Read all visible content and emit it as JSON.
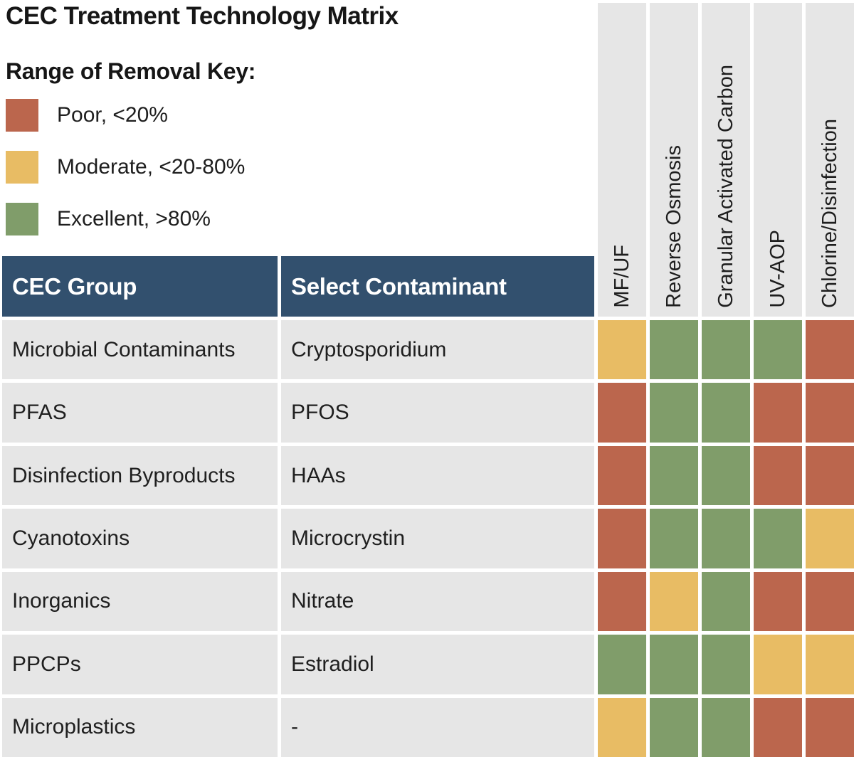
{
  "title": "CEC Treatment Technology Matrix",
  "legend": {
    "heading": "Range of Removal Key:",
    "items": [
      {
        "rating": "poor",
        "label": "Poor, <20%"
      },
      {
        "rating": "moderate",
        "label": "Moderate, <20-80%"
      },
      {
        "rating": "excellent",
        "label": "Excellent, >80%"
      }
    ]
  },
  "table": {
    "headers": [
      "CEC Group",
      "Select Contaminant"
    ],
    "technologies": [
      "MF/UF",
      "Reverse Osmosis",
      "Granular Activated Carbon",
      "UV-AOP",
      "Chlorine/Disinfection"
    ],
    "rows": [
      {
        "group": "Microbial Contaminants",
        "contaminant": "Cryptosporidium",
        "ratings": [
          "moderate",
          "excellent",
          "excellent",
          "excellent",
          "poor"
        ]
      },
      {
        "group": "PFAS",
        "contaminant": "PFOS",
        "ratings": [
          "poor",
          "excellent",
          "excellent",
          "poor",
          "poor"
        ]
      },
      {
        "group": "Disinfection Byproducts",
        "contaminant": "HAAs",
        "ratings": [
          "poor",
          "excellent",
          "excellent",
          "poor",
          "poor"
        ]
      },
      {
        "group": "Cyanotoxins",
        "contaminant": "Microcrystin",
        "ratings": [
          "poor",
          "excellent",
          "excellent",
          "excellent",
          "moderate"
        ]
      },
      {
        "group": "Inorganics",
        "contaminant": "Nitrate",
        "ratings": [
          "poor",
          "moderate",
          "excellent",
          "poor",
          "poor"
        ]
      },
      {
        "group": "PPCPs",
        "contaminant": "Estradiol",
        "ratings": [
          "excellent",
          "excellent",
          "excellent",
          "moderate",
          "moderate"
        ]
      },
      {
        "group": "Microplastics",
        "contaminant": "-",
        "ratings": [
          "moderate",
          "excellent",
          "excellent",
          "poor",
          "poor"
        ]
      }
    ]
  },
  "colors": {
    "poor": "#bb664d",
    "moderate": "#e8bc64",
    "excellent": "#809d6a",
    "header_bg": "#32506e",
    "cell_bg": "#e6e6e6",
    "page_bg": "#ffffff",
    "header_text": "#ffffff",
    "text": "#1e1e1e"
  },
  "chart_data": {
    "type": "heatmap",
    "title": "CEC Treatment Technology Matrix",
    "legend_title": "Range of Removal Key:",
    "legend_position": "top-left",
    "value_scale": {
      "poor": "Poor, <20%",
      "moderate": "Moderate, <20-80%",
      "excellent": "Excellent, >80%"
    },
    "x_labels": [
      "MF/UF",
      "Reverse Osmosis",
      "Granular Activated Carbon",
      "UV-AOP",
      "Chlorine/Disinfection"
    ],
    "y_labels": [
      "Microbial Contaminants (Cryptosporidium)",
      "PFAS (PFOS)",
      "Disinfection Byproducts (HAAs)",
      "Cyanotoxins (Microcrystin)",
      "Inorganics (Nitrate)",
      "PPCPs (Estradiol)",
      "Microplastics (-)"
    ],
    "values": [
      [
        "moderate",
        "excellent",
        "excellent",
        "excellent",
        "poor"
      ],
      [
        "poor",
        "excellent",
        "excellent",
        "poor",
        "poor"
      ],
      [
        "poor",
        "excellent",
        "excellent",
        "poor",
        "poor"
      ],
      [
        "poor",
        "excellent",
        "excellent",
        "excellent",
        "moderate"
      ],
      [
        "poor",
        "moderate",
        "excellent",
        "poor",
        "poor"
      ],
      [
        "excellent",
        "excellent",
        "excellent",
        "moderate",
        "moderate"
      ],
      [
        "moderate",
        "excellent",
        "excellent",
        "poor",
        "poor"
      ]
    ]
  }
}
